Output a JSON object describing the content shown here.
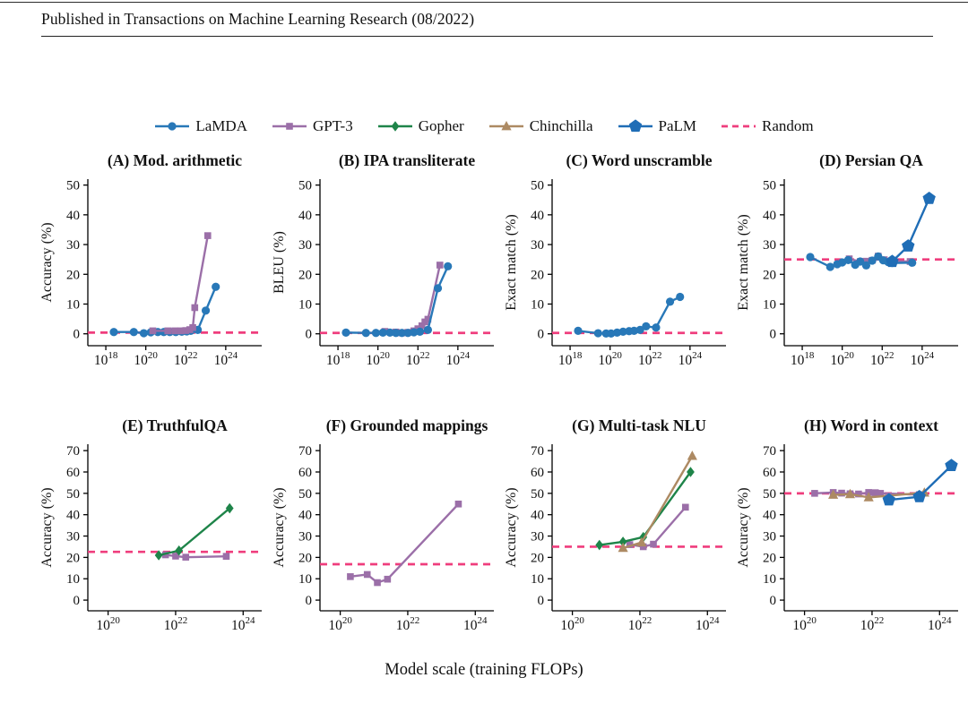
{
  "paper": {
    "header": "Published in Transactions on Machine Learning Research (08/2022)"
  },
  "figure": {
    "xlabel": "Model scale (training FLOPs)"
  },
  "colors": {
    "lamda": "#2878b8",
    "gpt3": "#9b6fa8",
    "gopher": "#1e8449",
    "chinchilla": "#ad8a63",
    "palm": "#1f6db6",
    "random": "#ef3d7d",
    "axis": "#000000",
    "text": "#111111"
  },
  "legend": [
    {
      "name": "lamda",
      "label": "LaMDA",
      "marker": "circle"
    },
    {
      "name": "gpt3",
      "label": "GPT-3",
      "marker": "square"
    },
    {
      "name": "gopher",
      "label": "Gopher",
      "marker": "diamond"
    },
    {
      "name": "chinchilla",
      "label": "Chinchilla",
      "marker": "triangle"
    },
    {
      "name": "palm",
      "label": "PaLM",
      "marker": "pentagon"
    },
    {
      "name": "random",
      "label": "Random",
      "marker": "dash"
    }
  ],
  "chart_data": [
    {
      "id": "A",
      "type": "line",
      "title": "(A) Mod. arithmetic",
      "ylabel": "Accuracy (%)",
      "ylim": [
        0,
        50
      ],
      "yticks": [
        0,
        10,
        20,
        30,
        40,
        50
      ],
      "xticks": [
        18,
        20,
        22,
        24
      ],
      "xdomain": [
        17.1,
        25.8
      ],
      "ydomain": [
        -4,
        52
      ],
      "random_baseline": 0.4,
      "series": [
        {
          "name": "lamda",
          "label": "LaMDA",
          "marker": "circle",
          "points": [
            [
              18.4,
              0.6
            ],
            [
              19.4,
              0.6
            ],
            [
              19.9,
              0.2
            ],
            [
              20.25,
              0.5
            ],
            [
              20.6,
              0.6
            ],
            [
              20.9,
              0.6
            ],
            [
              21.2,
              0.6
            ],
            [
              21.5,
              0.6
            ],
            [
              21.8,
              0.7
            ],
            [
              22.05,
              0.8
            ],
            [
              22.25,
              1.0
            ],
            [
              22.6,
              1.3
            ],
            [
              23.0,
              7.8
            ],
            [
              23.5,
              15.8
            ]
          ]
        },
        {
          "name": "gpt3",
          "label": "GPT-3",
          "marker": "square",
          "points": [
            [
              20.35,
              1.0
            ],
            [
              21.1,
              1.0
            ],
            [
              21.45,
              1.0
            ],
            [
              21.75,
              1.0
            ],
            [
              22.0,
              1.1
            ],
            [
              22.2,
              1.4
            ],
            [
              22.35,
              2.1
            ],
            [
              22.45,
              8.8
            ],
            [
              23.1,
              33.0
            ]
          ]
        }
      ]
    },
    {
      "id": "B",
      "type": "line",
      "title": "(B) IPA transliterate",
      "ylabel": "BLEU (%)",
      "ylim": [
        0,
        50
      ],
      "yticks": [
        0,
        10,
        20,
        30,
        40,
        50
      ],
      "xticks": [
        18,
        20,
        22,
        24
      ],
      "xdomain": [
        17.1,
        25.8
      ],
      "ydomain": [
        -4,
        52
      ],
      "random_baseline": 0.3,
      "series": [
        {
          "name": "gpt3",
          "label": "GPT-3",
          "marker": "square",
          "points": [
            [
              20.35,
              0.8
            ],
            [
              20.9,
              0.6
            ],
            [
              21.2,
              0.3
            ],
            [
              21.5,
              0.5
            ],
            [
              21.8,
              1.0
            ],
            [
              22.0,
              1.7
            ],
            [
              22.2,
              2.7
            ],
            [
              22.35,
              4.0
            ],
            [
              22.5,
              4.9
            ],
            [
              23.1,
              23.1
            ]
          ]
        },
        {
          "name": "lamda",
          "label": "LaMDA",
          "marker": "circle",
          "points": [
            [
              18.4,
              0.4
            ],
            [
              19.4,
              0.3
            ],
            [
              19.9,
              0.3
            ],
            [
              20.25,
              0.4
            ],
            [
              20.6,
              0.4
            ],
            [
              20.9,
              0.3
            ],
            [
              21.2,
              0.3
            ],
            [
              21.5,
              0.3
            ],
            [
              21.8,
              0.5
            ],
            [
              22.1,
              0.7
            ],
            [
              22.5,
              1.3
            ],
            [
              23.0,
              15.3
            ],
            [
              23.5,
              22.7
            ]
          ]
        }
      ]
    },
    {
      "id": "C",
      "type": "line",
      "title": "(C) Word unscramble",
      "ylabel": "Exact match (%)",
      "ylim": [
        0,
        50
      ],
      "yticks": [
        0,
        10,
        20,
        30,
        40,
        50
      ],
      "xticks": [
        18,
        20,
        22,
        24
      ],
      "xdomain": [
        17.1,
        25.8
      ],
      "ydomain": [
        -4,
        52
      ],
      "random_baseline": 0.3,
      "series": [
        {
          "name": "lamda",
          "label": "LaMDA",
          "marker": "circle",
          "points": [
            [
              18.4,
              1.0
            ],
            [
              19.4,
              0.2
            ],
            [
              19.8,
              0.1
            ],
            [
              20.05,
              0.1
            ],
            [
              20.35,
              0.4
            ],
            [
              20.65,
              0.7
            ],
            [
              20.95,
              0.9
            ],
            [
              21.2,
              1.0
            ],
            [
              21.5,
              1.3
            ],
            [
              21.8,
              2.5
            ],
            [
              22.3,
              2.1
            ],
            [
              23.0,
              10.8
            ],
            [
              23.5,
              12.4
            ]
          ]
        }
      ]
    },
    {
      "id": "D",
      "type": "line",
      "title": "(D) Persian QA",
      "ylabel": "Exact match (%)",
      "ylim": [
        0,
        50
      ],
      "yticks": [
        0,
        10,
        20,
        30,
        40,
        50
      ],
      "xticks": [
        18,
        20,
        22,
        24
      ],
      "xdomain": [
        17.1,
        25.8
      ],
      "ydomain": [
        -4,
        52
      ],
      "random_baseline": 25,
      "series": [
        {
          "name": "gpt3",
          "label": "GPT-3",
          "marker": "square",
          "points": [
            [
              20.35,
              25.2
            ],
            [
              20.9,
              24.3
            ],
            [
              21.2,
              24.4
            ],
            [
              21.5,
              24.7
            ],
            [
              21.8,
              26.1
            ],
            [
              22.1,
              24.9
            ],
            [
              22.35,
              24.4
            ],
            [
              23.4,
              24.3
            ]
          ]
        },
        {
          "name": "lamda",
          "label": "LaMDA",
          "marker": "circle",
          "points": [
            [
              18.4,
              25.8
            ],
            [
              19.4,
              22.5
            ],
            [
              19.75,
              23.4
            ],
            [
              20.0,
              24.0
            ],
            [
              20.3,
              24.8
            ],
            [
              20.65,
              23.2
            ],
            [
              20.9,
              24.3
            ],
            [
              21.2,
              23.0
            ],
            [
              21.5,
              24.6
            ],
            [
              21.8,
              26.0
            ],
            [
              22.05,
              24.7
            ],
            [
              22.3,
              24.1
            ],
            [
              22.5,
              23.8
            ],
            [
              23.5,
              23.9
            ]
          ]
        },
        {
          "name": "palm",
          "label": "PaLM",
          "marker": "pentagon",
          "points": [
            [
              22.5,
              24.3
            ],
            [
              23.3,
              29.5
            ],
            [
              24.35,
              45.5
            ]
          ]
        }
      ]
    },
    {
      "id": "E",
      "type": "line",
      "title": "(E) TruthfulQA",
      "ylabel": "Accuracy (%)",
      "ylim": [
        0,
        70
      ],
      "yticks": [
        0,
        10,
        20,
        30,
        40,
        50,
        60,
        70
      ],
      "xticks": [
        20,
        22,
        24
      ],
      "xdomain": [
        19.4,
        24.55
      ],
      "ydomain": [
        -5,
        73
      ],
      "random_baseline": 22.6,
      "series": [
        {
          "name": "gpt3",
          "label": "GPT-3",
          "marker": "square",
          "points": [
            [
              21.7,
              21.2
            ],
            [
              22.0,
              20.6
            ],
            [
              22.3,
              20.1
            ],
            [
              23.5,
              20.5
            ]
          ]
        },
        {
          "name": "gopher",
          "label": "Gopher",
          "marker": "diamond",
          "points": [
            [
              21.5,
              21.0
            ],
            [
              22.1,
              23.2
            ],
            [
              23.6,
              43.0
            ]
          ]
        }
      ]
    },
    {
      "id": "F",
      "type": "line",
      "title": "(F) Grounded mappings",
      "ylabel": "Accuracy (%)",
      "ylim": [
        0,
        70
      ],
      "yticks": [
        0,
        10,
        20,
        30,
        40,
        50,
        60,
        70
      ],
      "xticks": [
        20,
        22,
        24
      ],
      "xdomain": [
        19.4,
        24.55
      ],
      "ydomain": [
        -5,
        73
      ],
      "random_baseline": 16.8,
      "series": [
        {
          "name": "gpt3",
          "label": "GPT-3",
          "marker": "square",
          "points": [
            [
              20.3,
              11.0
            ],
            [
              20.8,
              12.0
            ],
            [
              21.1,
              8.2
            ],
            [
              21.4,
              9.8
            ],
            [
              23.5,
              45.0
            ]
          ]
        }
      ]
    },
    {
      "id": "G",
      "type": "line",
      "title": "(G) Multi-task NLU",
      "ylabel": "Accuracy (%)",
      "ylim": [
        0,
        70
      ],
      "yticks": [
        0,
        10,
        20,
        30,
        40,
        50,
        60,
        70
      ],
      "xticks": [
        20,
        22,
        24
      ],
      "xdomain": [
        19.4,
        24.55
      ],
      "ydomain": [
        -5,
        73
      ],
      "random_baseline": 25,
      "series": [
        {
          "name": "gpt3",
          "label": "GPT-3",
          "marker": "square",
          "points": [
            [
              21.7,
              26.0
            ],
            [
              22.1,
              25.0
            ],
            [
              22.4,
              26.2
            ],
            [
              23.35,
              43.5
            ]
          ]
        },
        {
          "name": "gopher",
          "label": "Gopher",
          "marker": "diamond",
          "points": [
            [
              20.8,
              25.8
            ],
            [
              21.5,
              27.3
            ],
            [
              22.1,
              29.5
            ],
            [
              23.5,
              60.0
            ]
          ]
        },
        {
          "name": "chinchilla",
          "label": "Chinchilla",
          "marker": "triangle",
          "points": [
            [
              21.5,
              24.4
            ],
            [
              22.05,
              27.0
            ],
            [
              23.55,
              67.5
            ]
          ]
        }
      ]
    },
    {
      "id": "H",
      "type": "line",
      "title": "(H) Word in context",
      "ylabel": "Accuracy (%)",
      "ylim": [
        0,
        70
      ],
      "yticks": [
        0,
        10,
        20,
        30,
        40,
        50,
        60,
        70
      ],
      "xticks": [
        20,
        22,
        24
      ],
      "xdomain": [
        19.4,
        24.55
      ],
      "ydomain": [
        -5,
        73
      ],
      "random_baseline": 50,
      "series": [
        {
          "name": "gpt3",
          "label": "GPT-3",
          "marker": "square",
          "points": [
            [
              20.3,
              50.0
            ],
            [
              20.85,
              50.4
            ],
            [
              21.1,
              50.1
            ],
            [
              21.35,
              49.8
            ],
            [
              21.6,
              49.7
            ],
            [
              21.9,
              50.4
            ],
            [
              22.1,
              50.3
            ],
            [
              22.25,
              50.0
            ],
            [
              23.4,
              49.4
            ]
          ]
        },
        {
          "name": "chinchilla",
          "label": "Chinchilla",
          "marker": "triangle",
          "points": [
            [
              20.85,
              49.3
            ],
            [
              21.35,
              49.6
            ],
            [
              21.9,
              48.1
            ],
            [
              23.55,
              50.3
            ]
          ]
        },
        {
          "name": "palm",
          "label": "PaLM",
          "marker": "pentagon",
          "points": [
            [
              22.5,
              46.9
            ],
            [
              23.4,
              48.4
            ],
            [
              24.35,
              63.0
            ]
          ]
        }
      ]
    }
  ]
}
